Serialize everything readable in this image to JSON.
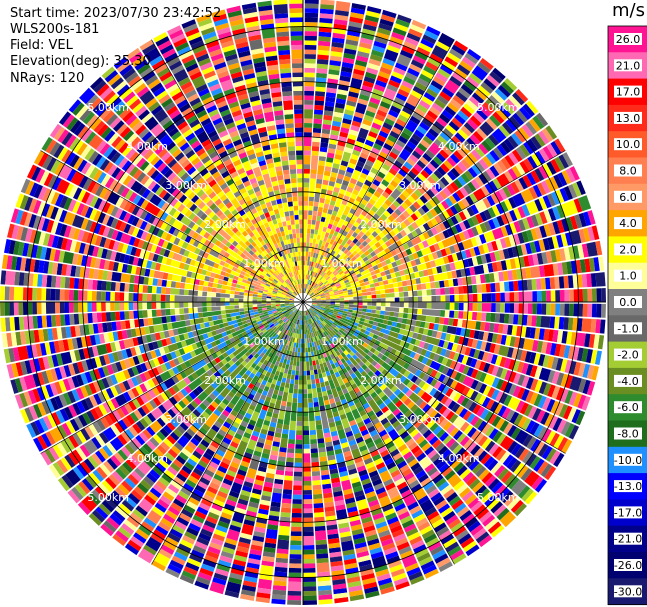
{
  "header": {
    "start_time": "Start time: 2023/07/30 23:42:52",
    "site": "WLS200s-181",
    "field": "Field: VEL",
    "elevation": "Elevation(deg): 35.30",
    "nrays": "NRays: 120"
  },
  "chart_data": {
    "type": "heatmap",
    "projection": "polar PPI",
    "field": "VEL",
    "unit": "m/s",
    "nrays": 120,
    "range_rings_km": [
      1.0,
      2.0,
      3.0,
      4.0,
      5.0
    ],
    "ring_label_text": [
      "1.00km",
      "2.00km",
      "3.00km",
      "4.00km",
      "5.00km"
    ],
    "max_range_km": 5.5,
    "colorbar": {
      "title": "m/s",
      "ticks": [
        "26.0",
        "21.0",
        "17.0",
        "13.0",
        "10.0",
        "8.0",
        "6.0",
        "4.0",
        "2.0",
        "1.0",
        "0.0",
        "-1.0",
        "-2.0",
        "-4.0",
        "-6.0",
        "-8.0",
        "-10.0",
        "-13.0",
        "-17.0",
        "-21.0",
        "-26.0",
        "-30.0"
      ],
      "colors": [
        "#ff1493",
        "#ff69b4",
        "#ff0000",
        "#ff2a1a",
        "#ff5a2a",
        "#ff7f50",
        "#ff9966",
        "#ffa500",
        "#ffff00",
        "#ffff99",
        "#808080",
        "#696969",
        "#a4cc33",
        "#6b8e23",
        "#2e8b2e",
        "#1e6e1e",
        "#1e90ff",
        "#0000ff",
        "#0000cd",
        "#00008b",
        "#000070",
        "#191970"
      ]
    },
    "approx_regions": [
      {
        "sector": "north, 0-2.5 km",
        "velocity_m_s": "2 to 8"
      },
      {
        "sector": "south, 0-2.5 km",
        "velocity_m_s": "-2 to -6"
      },
      {
        "sector": "beyond 3 km",
        "velocity_m_s": "noise, -30 to 26"
      }
    ]
  }
}
